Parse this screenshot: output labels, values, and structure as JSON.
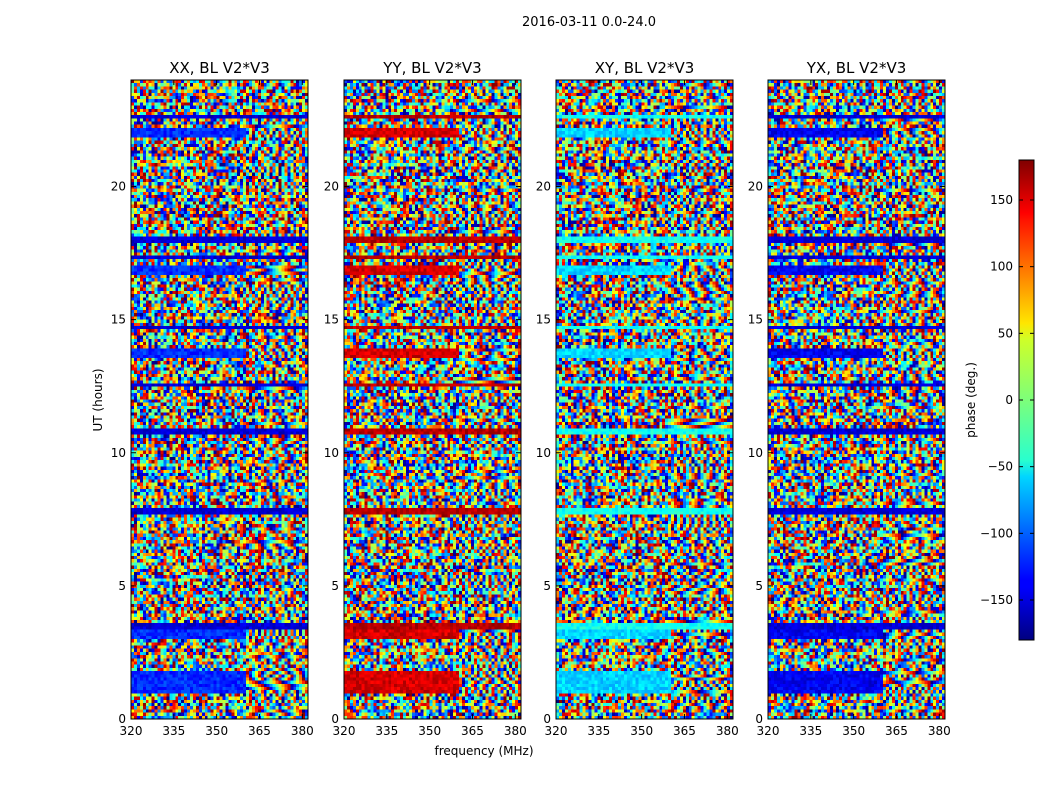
{
  "chart_data": {
    "type": "heatmap",
    "suptitle": "2016-03-11 0.0-24.0",
    "xlabel": "frequency (MHz)",
    "ylabel": "UT (hours)",
    "xlim": [
      320,
      382
    ],
    "ylim": [
      0,
      24
    ],
    "xticks": [
      320,
      335,
      350,
      365,
      380
    ],
    "yticks": [
      0,
      5,
      10,
      15,
      20
    ],
    "panels": [
      {
        "title": "XX, BL V2*V3",
        "base_phase": -150,
        "sat_phase": -120
      },
      {
        "title": "YY, BL V2*V3",
        "base_phase": 160,
        "sat_phase": 150
      },
      {
        "title": "XY, BL V2*V3",
        "base_phase": -40,
        "sat_phase": -60
      },
      {
        "title": "YX, BL V2*V3",
        "base_phase": -150,
        "sat_phase": -140
      }
    ],
    "colorbar": {
      "label": "phase (deg.)",
      "range": [
        -180,
        180
      ],
      "ticks": [
        -150,
        -100,
        -50,
        0,
        50,
        100,
        150
      ],
      "tick_labels": [
        "−150",
        "−100",
        "−50",
        "0",
        "50",
        "100",
        "150"
      ],
      "colormap": "jet"
    },
    "saturated_bands_ut_hours": [
      [
        1.0,
        1.8
      ],
      [
        3.0,
        3.3
      ],
      [
        13.6,
        13.9
      ],
      [
        16.7,
        17.0
      ],
      [
        21.9,
        22.2
      ]
    ],
    "dark_band_ut_hours": [
      3.4,
      3.5,
      7.8,
      10.8,
      12.5,
      14.7,
      17.3,
      18.0,
      22.6
    ]
  }
}
